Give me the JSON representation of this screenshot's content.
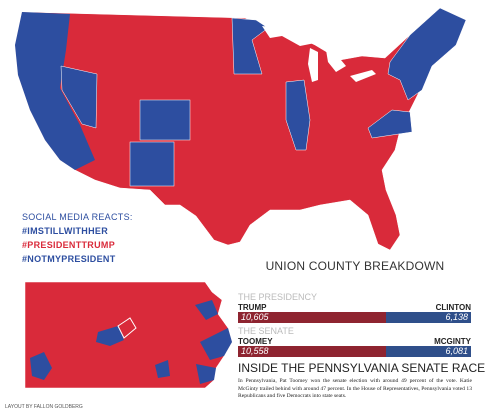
{
  "social_media": {
    "heading": "SOCIAL MEDIA REACTS:",
    "hashtags": [
      "#IMSTILLWITHHER",
      "#PRESIDENTTRUMP",
      "#NOTMYPRESIDENT"
    ]
  },
  "breakdown": {
    "title": "UNION COUNTY BREAKDOWN",
    "races": [
      {
        "label": "THE PRESIDENCY",
        "left_name": "TRUMP",
        "right_name": "CLINTON",
        "left_value": "10,605",
        "right_value": "6,138"
      },
      {
        "label": "THE SENATE",
        "left_name": "TOOMEY",
        "right_name": "MCGINTY",
        "left_value": "10,558",
        "right_value": "6,081"
      }
    ]
  },
  "article": {
    "title": "INSIDE THE PENNSYLVANIA SENATE RACE",
    "body": "In Pennsylvania, Pat Toomey won the senate election with around 49 percent of the vote. Katie McGinty trailed behind with around 47 percent. In the House of Representatives, Pennsylvania voted 13 Republicans and five Democrats into state seats."
  },
  "credit": "LAYOUT BY FALLON GOLDBERG"
}
